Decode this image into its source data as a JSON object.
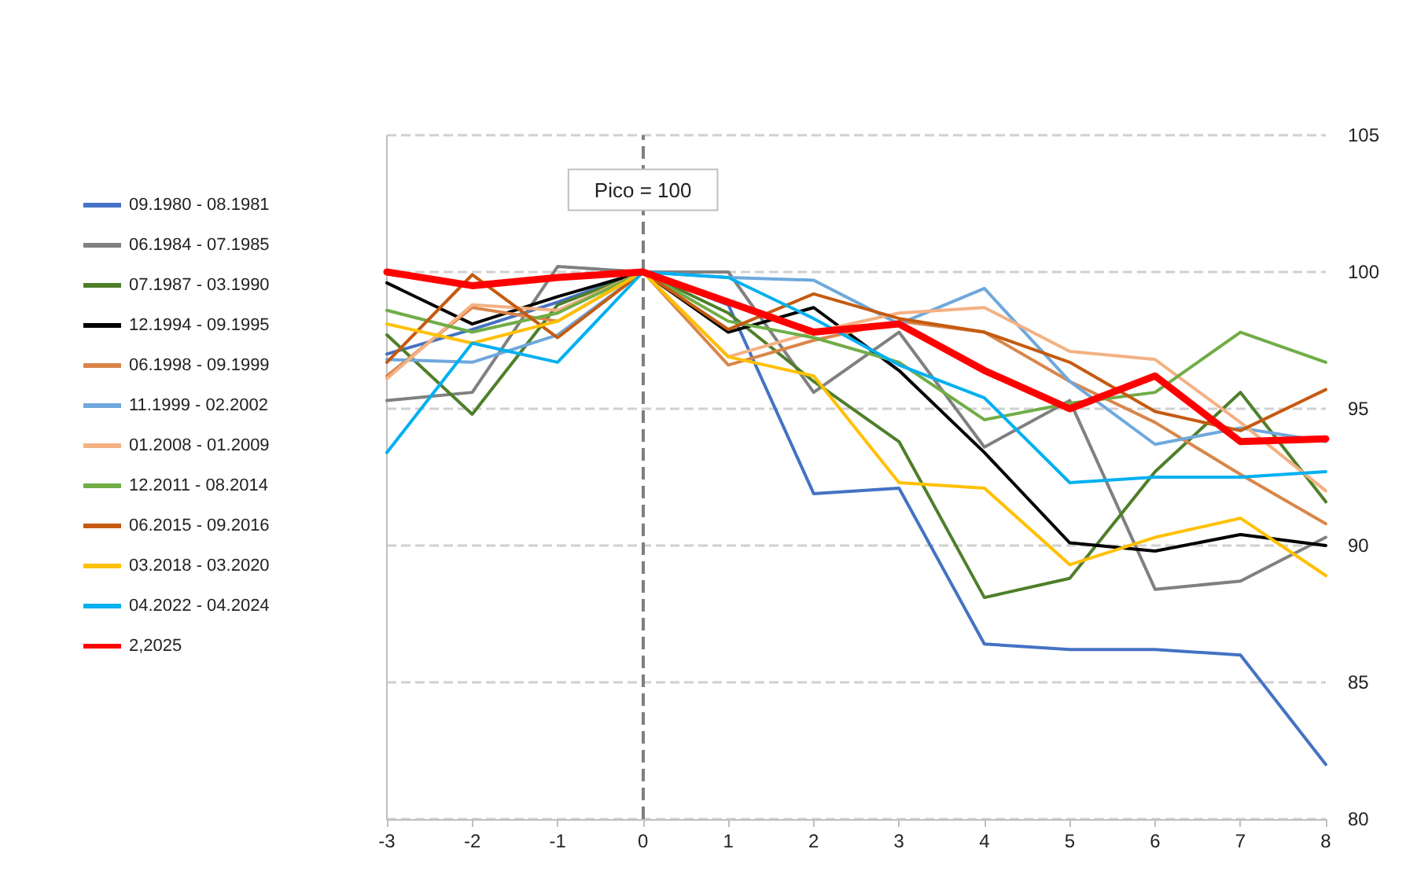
{
  "chart_data": {
    "type": "line",
    "x": [
      -3,
      -2,
      -1,
      0,
      1,
      2,
      3,
      4,
      5,
      6,
      7,
      8
    ],
    "xlim": [
      -3,
      8
    ],
    "xticks": [
      -3,
      -2,
      -1,
      0,
      1,
      2,
      3,
      4,
      5,
      6,
      7,
      8
    ],
    "ylim": [
      80,
      105
    ],
    "yticks": [
      80,
      85,
      90,
      95,
      100,
      105
    ],
    "grid": "y",
    "legend": "left",
    "marker": "none",
    "line_style": "solid",
    "ref_lines": [
      {
        "axis": "x",
        "value": 0,
        "color": "#7f7f7f",
        "line_style": "dashed"
      }
    ],
    "annotations": [
      {
        "text": "Pico = 100",
        "x": 0,
        "y": 103
      }
    ],
    "series": [
      {
        "name": "09.1980 - 08.1981",
        "color": "#4472c4",
        "values": [
          97.0,
          97.9,
          98.9,
          100,
          98.8,
          91.9,
          92.1,
          86.4,
          86.2,
          86.2,
          86.0,
          82.0
        ]
      },
      {
        "name": "06.1984 - 07.1985",
        "color": "#808080",
        "values": [
          95.3,
          95.6,
          100.2,
          100,
          100.0,
          95.6,
          97.8,
          93.6,
          95.3,
          88.4,
          88.7,
          90.3
        ]
      },
      {
        "name": "07.1987 - 03.1990",
        "color": "#4e7f2a",
        "values": [
          97.7,
          94.8,
          98.8,
          100,
          98.5,
          96.0,
          93.8,
          88.1,
          88.8,
          92.7,
          95.6,
          91.6
        ]
      },
      {
        "name": "12.1994 - 09.1995",
        "color": "#000000",
        "values": [
          99.6,
          98.1,
          99.1,
          100,
          97.8,
          98.7,
          96.4,
          93.4,
          90.1,
          89.8,
          90.4,
          90.0
        ]
      },
      {
        "name": "06.1998 - 09.1999",
        "color": "#d9864a",
        "values": [
          96.2,
          98.7,
          98.2,
          100,
          96.6,
          97.5,
          98.2,
          97.8,
          96.0,
          94.5,
          92.6,
          90.8
        ]
      },
      {
        "name": "11.1999 - 02.2002",
        "color": "#6fa8dc",
        "values": [
          96.8,
          96.7,
          97.7,
          100,
          99.8,
          99.7,
          98.1,
          99.4,
          96.0,
          93.7,
          94.3,
          93.8
        ]
      },
      {
        "name": "01.2008 - 01.2009",
        "color": "#f4b183",
        "values": [
          96.1,
          98.8,
          98.6,
          100,
          96.9,
          97.8,
          98.5,
          98.7,
          97.1,
          96.8,
          94.5,
          92.0
        ]
      },
      {
        "name": "12.2011 - 08.2014",
        "color": "#70ad47",
        "values": [
          98.6,
          97.8,
          98.5,
          100,
          98.2,
          97.6,
          96.7,
          94.6,
          95.2,
          95.6,
          97.8,
          96.7
        ]
      },
      {
        "name": "06.2015 - 09.2016",
        "color": "#c55a11",
        "values": [
          96.7,
          99.9,
          97.6,
          100,
          97.9,
          99.2,
          98.3,
          97.8,
          96.7,
          94.9,
          94.2,
          95.7
        ]
      },
      {
        "name": "03.2018 - 03.2020",
        "color": "#ffc000",
        "values": [
          98.1,
          97.4,
          98.2,
          100,
          96.9,
          96.2,
          92.3,
          92.1,
          89.3,
          90.3,
          91.0,
          88.9
        ]
      },
      {
        "name": "04.2022 - 04.2024",
        "color": "#00b0f0",
        "values": [
          93.4,
          97.4,
          96.7,
          100,
          99.8,
          98.3,
          96.6,
          95.4,
          92.3,
          92.5,
          92.5,
          92.7
        ]
      },
      {
        "name": "2,2025",
        "color": "#ff0000",
        "values": [
          100.0,
          99.5,
          99.8,
          100,
          98.9,
          97.8,
          98.1,
          96.4,
          95.0,
          96.2,
          93.8,
          93.9
        ]
      }
    ]
  }
}
